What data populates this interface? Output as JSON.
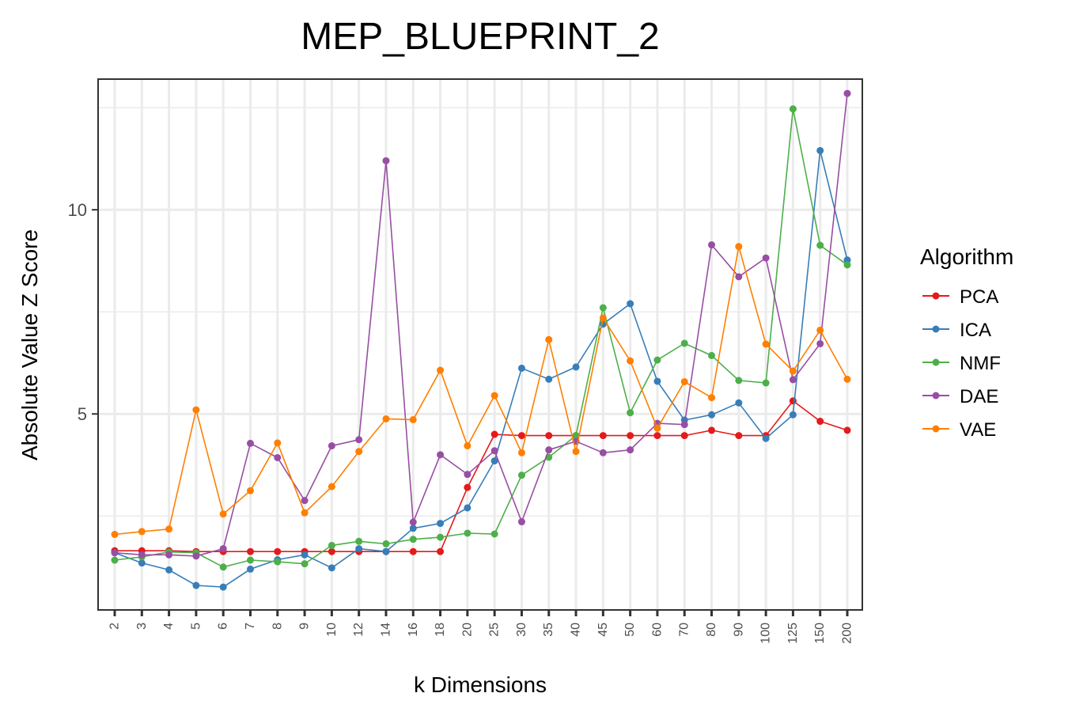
{
  "chart_data": {
    "type": "line",
    "title": "MEP_BLUEPRINT_2",
    "xlabel": "k Dimensions",
    "ylabel": "Absolute Value Z Score",
    "categories": [
      "2",
      "3",
      "4",
      "5",
      "6",
      "7",
      "8",
      "9",
      "10",
      "12",
      "14",
      "16",
      "18",
      "20",
      "25",
      "30",
      "35",
      "40",
      "45",
      "50",
      "60",
      "70",
      "80",
      "90",
      "100",
      "125",
      "150",
      "200"
    ],
    "yticks": [
      5,
      10
    ],
    "ylim": [
      0.2,
      13.2
    ],
    "grid": true,
    "legend": {
      "title": "Algorithm",
      "placement": "right"
    },
    "series": [
      {
        "name": "PCA",
        "color": "#e41a1c",
        "values": [
          1.65,
          1.65,
          1.65,
          1.63,
          1.63,
          1.63,
          1.63,
          1.63,
          1.63,
          1.63,
          1.63,
          1.63,
          1.63,
          3.2,
          4.5,
          4.47,
          4.47,
          4.47,
          4.47,
          4.47,
          4.47,
          4.47,
          4.6,
          4.47,
          4.47,
          5.32,
          4.82,
          4.6
        ]
      },
      {
        "name": "ICA",
        "color": "#377eb8",
        "values": [
          1.6,
          1.35,
          1.18,
          0.8,
          0.76,
          1.2,
          1.43,
          1.55,
          1.23,
          1.7,
          1.63,
          2.2,
          2.32,
          2.7,
          3.85,
          6.12,
          5.85,
          6.15,
          7.2,
          7.7,
          5.8,
          4.85,
          4.98,
          5.27,
          4.4,
          4.98,
          11.45,
          8.77
        ]
      },
      {
        "name": "NMF",
        "color": "#4daf4a",
        "values": [
          1.42,
          1.5,
          1.62,
          1.6,
          1.25,
          1.42,
          1.38,
          1.33,
          1.78,
          1.88,
          1.82,
          1.93,
          1.98,
          2.08,
          2.06,
          3.5,
          3.94,
          4.47,
          7.6,
          5.03,
          6.32,
          6.73,
          6.43,
          5.82,
          5.76,
          12.47,
          9.13,
          8.65
        ]
      },
      {
        "name": "DAE",
        "color": "#984ea3",
        "values": [
          1.6,
          1.55,
          1.55,
          1.52,
          1.7,
          4.28,
          3.93,
          2.88,
          4.22,
          4.37,
          11.2,
          2.35,
          4,
          3.52,
          4.1,
          2.36,
          4.12,
          4.33,
          4.05,
          4.12,
          4.77,
          4.74,
          9.14,
          8.36,
          8.82,
          5.84,
          6.72,
          12.85
        ]
      },
      {
        "name": "VAE",
        "color": "#ff7f00",
        "values": [
          2.05,
          2.12,
          2.18,
          5.1,
          2.55,
          3.12,
          4.29,
          2.58,
          3.22,
          4.08,
          4.88,
          4.86,
          6.07,
          4.22,
          5.45,
          4.05,
          6.82,
          4.08,
          7.35,
          6.3,
          4.65,
          5.79,
          5.4,
          9.1,
          6.71,
          6.05,
          7.05,
          5.85
        ]
      }
    ]
  }
}
